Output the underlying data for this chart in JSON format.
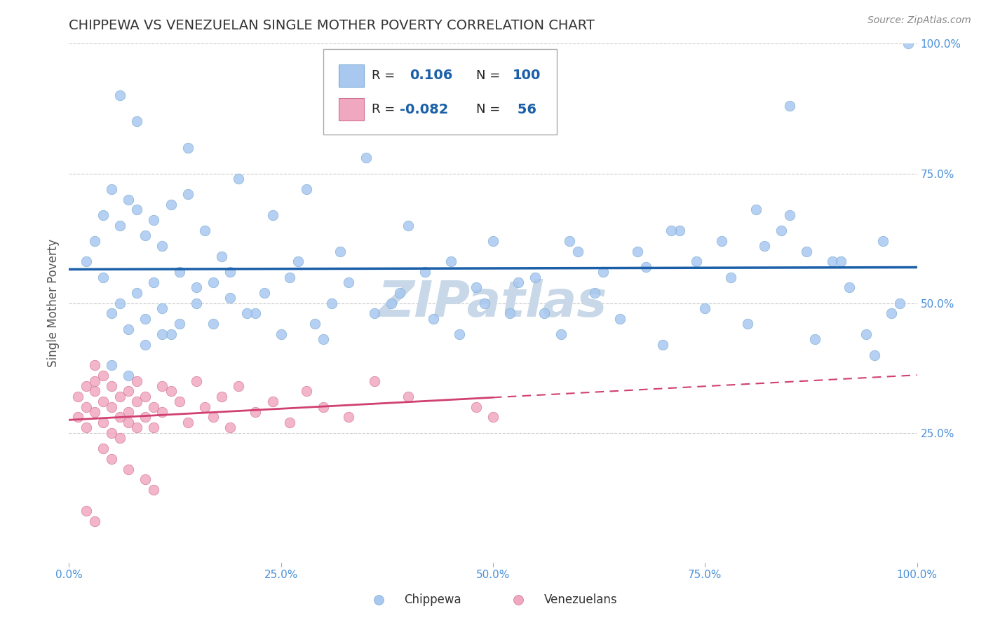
{
  "title": "CHIPPEWA VS VENEZUELAN SINGLE MOTHER POVERTY CORRELATION CHART",
  "source_text": "Source: ZipAtlas.com",
  "ylabel": "Single Mother Poverty",
  "x_min": 0.0,
  "x_max": 1.0,
  "y_min": 0.0,
  "y_max": 1.0,
  "x_ticks": [
    0.0,
    0.25,
    0.5,
    0.75,
    1.0
  ],
  "x_tick_labels": [
    "0.0%",
    "25.0%",
    "50.0%",
    "75.0%",
    "100.0%"
  ],
  "y_ticks": [
    0.25,
    0.5,
    0.75,
    1.0
  ],
  "y_tick_labels": [
    "25.0%",
    "50.0%",
    "75.0%",
    "100.0%"
  ],
  "chippewa_color": "#a8c8f0",
  "venezuelan_color": "#f0a8c0",
  "chippewa_edge_color": "#7aaad0",
  "venezuelan_edge_color": "#d07090",
  "chippewa_line_color": "#1a5fa8",
  "venezuelan_line_color": "#d04070",
  "grid_color": "#cccccc",
  "watermark_color": "#c8d8e8",
  "chippewa_label": "Chippewa",
  "venezuelan_label": "Venezuelans",
  "background_color": "#ffffff",
  "title_color": "#333333",
  "axis_label_color": "#555555",
  "tick_label_color": "#4a90d9",
  "right_tick_label_color": "#4a90d9",
  "chippewa_seed_x": [
    0.02,
    0.03,
    0.04,
    0.04,
    0.05,
    0.05,
    0.06,
    0.06,
    0.07,
    0.07,
    0.08,
    0.08,
    0.09,
    0.09,
    0.1,
    0.1,
    0.11,
    0.11,
    0.12,
    0.12,
    0.13,
    0.14,
    0.15,
    0.16,
    0.17,
    0.18,
    0.19,
    0.2,
    0.22,
    0.24,
    0.26,
    0.28,
    0.3,
    0.32,
    0.35,
    0.38,
    0.4,
    0.43,
    0.45,
    0.48,
    0.5,
    0.52,
    0.55,
    0.58,
    0.6,
    0.62,
    0.65,
    0.68,
    0.7,
    0.72,
    0.75,
    0.78,
    0.8,
    0.82,
    0.85,
    0.88,
    0.9,
    0.92,
    0.95,
    0.97,
    0.99,
    0.14,
    0.08,
    0.06,
    0.05,
    0.07,
    0.09,
    0.11,
    0.13,
    0.15,
    0.17,
    0.19,
    0.21,
    0.23,
    0.25,
    0.27,
    0.29,
    0.31,
    0.33,
    0.36,
    0.39,
    0.42,
    0.46,
    0.49,
    0.53,
    0.56,
    0.59,
    0.63,
    0.67,
    0.71,
    0.74,
    0.77,
    0.81,
    0.84,
    0.87,
    0.91,
    0.94,
    0.96,
    0.98,
    0.85
  ],
  "chippewa_seed_y": [
    0.58,
    0.62,
    0.55,
    0.67,
    0.48,
    0.72,
    0.5,
    0.65,
    0.45,
    0.7,
    0.52,
    0.68,
    0.47,
    0.63,
    0.54,
    0.66,
    0.49,
    0.61,
    0.44,
    0.69,
    0.56,
    0.71,
    0.53,
    0.64,
    0.46,
    0.59,
    0.51,
    0.74,
    0.48,
    0.67,
    0.55,
    0.72,
    0.43,
    0.6,
    0.78,
    0.5,
    0.65,
    0.47,
    0.58,
    0.53,
    0.62,
    0.48,
    0.55,
    0.44,
    0.6,
    0.52,
    0.47,
    0.57,
    0.42,
    0.64,
    0.49,
    0.55,
    0.46,
    0.61,
    0.67,
    0.43,
    0.58,
    0.53,
    0.4,
    0.48,
    1.0,
    0.8,
    0.85,
    0.9,
    0.38,
    0.36,
    0.42,
    0.44,
    0.46,
    0.5,
    0.54,
    0.56,
    0.48,
    0.52,
    0.44,
    0.58,
    0.46,
    0.5,
    0.54,
    0.48,
    0.52,
    0.56,
    0.44,
    0.5,
    0.54,
    0.48,
    0.62,
    0.56,
    0.6,
    0.64,
    0.58,
    0.62,
    0.68,
    0.64,
    0.6,
    0.58,
    0.44,
    0.62,
    0.5,
    0.88
  ],
  "venezuelan_seed_x": [
    0.01,
    0.01,
    0.02,
    0.02,
    0.02,
    0.03,
    0.03,
    0.03,
    0.04,
    0.04,
    0.04,
    0.05,
    0.05,
    0.05,
    0.06,
    0.06,
    0.07,
    0.07,
    0.07,
    0.08,
    0.08,
    0.09,
    0.09,
    0.1,
    0.1,
    0.11,
    0.11,
    0.12,
    0.13,
    0.14,
    0.15,
    0.16,
    0.17,
    0.18,
    0.19,
    0.2,
    0.22,
    0.24,
    0.26,
    0.28,
    0.3,
    0.33,
    0.36,
    0.4,
    0.48,
    0.5,
    0.03,
    0.04,
    0.05,
    0.06,
    0.07,
    0.08,
    0.09,
    0.1,
    0.02,
    0.03
  ],
  "venezuelan_seed_y": [
    0.32,
    0.28,
    0.34,
    0.3,
    0.26,
    0.33,
    0.29,
    0.35,
    0.31,
    0.27,
    0.36,
    0.3,
    0.25,
    0.34,
    0.28,
    0.32,
    0.29,
    0.33,
    0.27,
    0.31,
    0.35,
    0.28,
    0.32,
    0.3,
    0.26,
    0.34,
    0.29,
    0.33,
    0.31,
    0.27,
    0.35,
    0.3,
    0.28,
    0.32,
    0.26,
    0.34,
    0.29,
    0.31,
    0.27,
    0.33,
    0.3,
    0.28,
    0.35,
    0.32,
    0.3,
    0.28,
    0.38,
    0.22,
    0.2,
    0.24,
    0.18,
    0.26,
    0.16,
    0.14,
    0.1,
    0.08
  ]
}
